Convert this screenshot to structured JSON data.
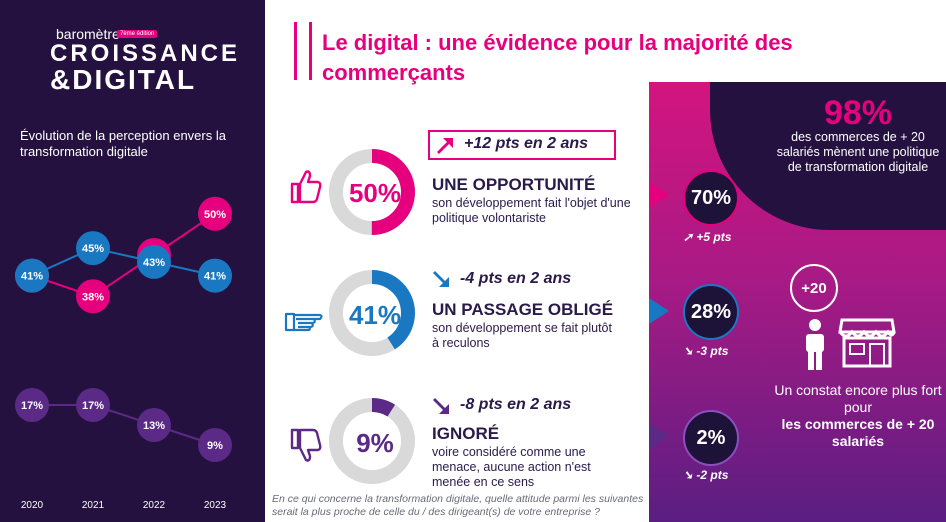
{
  "logo": {
    "small": "baromètre",
    "edition": "7ème édition",
    "line1": "CROISSANCE",
    "line2": "&DIGITAL"
  },
  "left_subtitle": "Évolution de la perception envers la transformation digitale",
  "title": "Le digital : une évidence pour la majorité des commerçants",
  "categories": [
    {
      "pct": "50%",
      "value": 50,
      "color": "#e6007e",
      "name": "UNE OPPORTUNITÉ",
      "desc": "son développement fait l'objet d'une politique volontariste",
      "change": "+12 pts en 2 ans",
      "change_dir": "up",
      "right_value": "70%",
      "right_change": "+5 pts",
      "right_color": "#e6007e",
      "icon": "thumbs-up-icon"
    },
    {
      "pct": "41%",
      "value": 41,
      "color": "#1a78c2",
      "name": "UN PASSAGE OBLIGÉ",
      "desc": "son développement se fait plutôt à reculons",
      "change": "-4 pts en 2 ans",
      "change_dir": "down",
      "right_value": "28%",
      "right_change": "-3 pts",
      "right_color": "#1a78c2",
      "icon": "pointing-hand-icon"
    },
    {
      "pct": "9%",
      "value": 9,
      "color": "#5b2a86",
      "name": "IGNORÉ",
      "desc": "voire considéré comme une menace, aucune action n'est menée en ce sens",
      "change": "-8 pts en 2 ans",
      "change_dir": "down",
      "right_value": "2%",
      "right_change": "-2 pts",
      "right_color": "#8a4fc0",
      "icon": "thumbs-down-icon"
    }
  ],
  "right_panel": {
    "big_value": "98%",
    "big_text": "des commerces de + 20 salariés mènent une politique de transformation digitale",
    "badge": "+20",
    "constat": "Un constat encore plus fort pour",
    "constat_bold": "les commerces de + 20 salariés"
  },
  "note": "En ce qui concerne la transformation digitale, quelle attitude parmi les suivantes serait la plus proche de celle du / des dirigeant(s) de votre entreprise ?",
  "chart_data": {
    "type": "line",
    "x": [
      "2020",
      "2021",
      "2022",
      "2023"
    ],
    "series": [
      {
        "values": [
          41,
          38,
          44,
          50
        ],
        "labels": [
          "41%",
          "38%",
          "44%",
          "50%"
        ],
        "color": "#e6007e"
      },
      {
        "values": [
          41,
          45,
          43,
          41
        ],
        "labels": [
          "41%",
          "45%",
          "43%",
          "41%"
        ],
        "color": "#1a78c2"
      },
      {
        "values": [
          17,
          17,
          13,
          9
        ],
        "labels": [
          "17%",
          "17%",
          "13%",
          "9%"
        ],
        "color": "#5b2a86"
      }
    ],
    "ylim_upper": [
      36,
      52
    ],
    "ylim_lower": [
      8,
      18
    ],
    "grid": false
  }
}
